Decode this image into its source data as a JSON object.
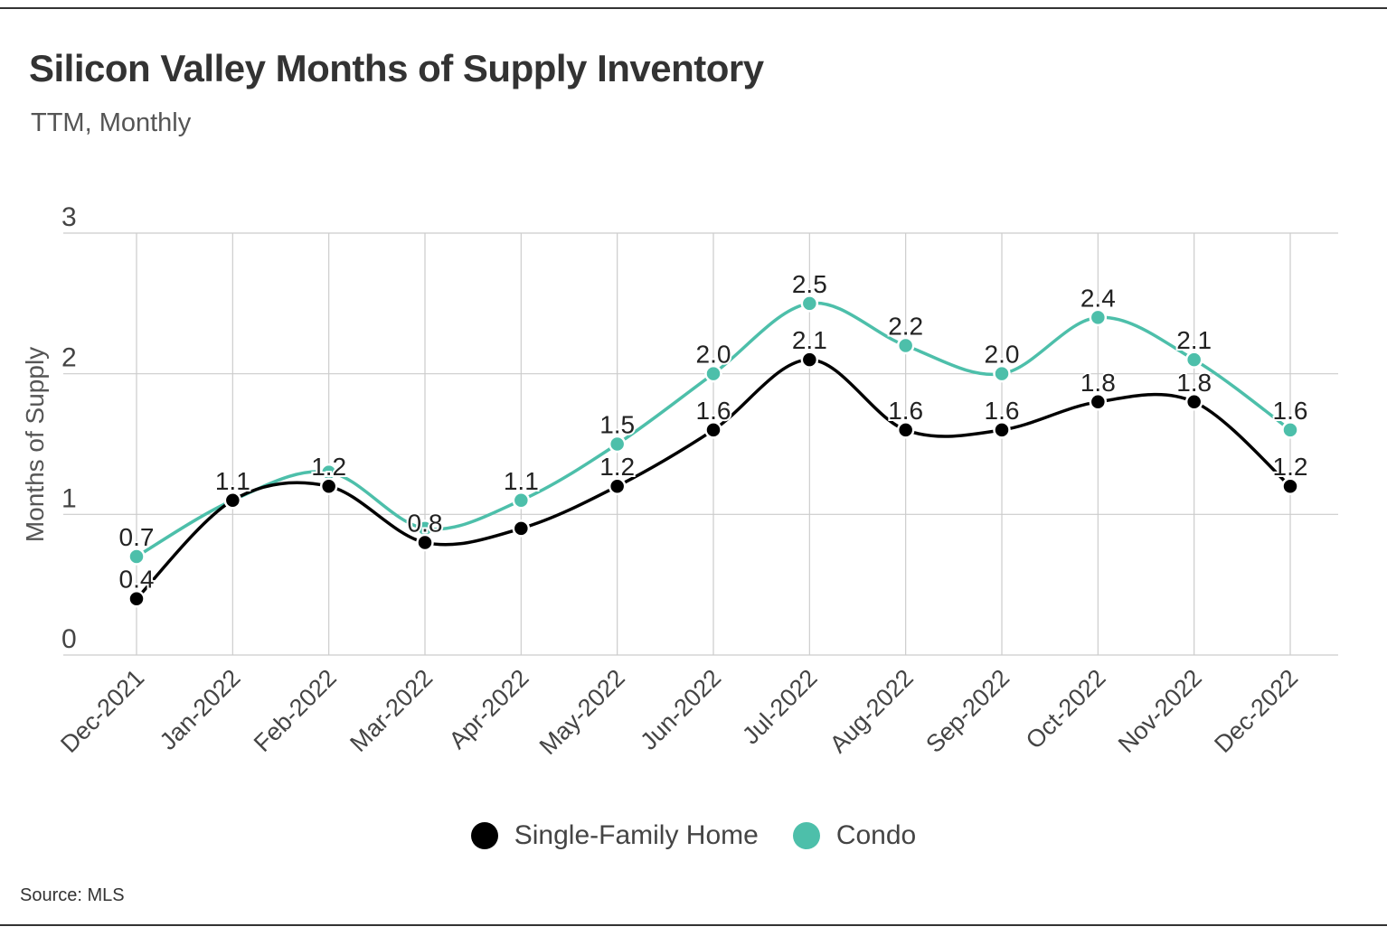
{
  "header": {
    "title": "Silicon Valley Months of Supply Inventory",
    "subtitle": "TTM, Monthly"
  },
  "footer": {
    "source": "Source:  MLS"
  },
  "colors": {
    "single_family": "#000000",
    "condo": "#4dbfaa",
    "grid": "#cccccc",
    "text": "#333333"
  },
  "chart_data": {
    "type": "line",
    "title": "Silicon Valley Months of Supply Inventory",
    "subtitle": "TTM, Monthly",
    "xlabel": "",
    "ylabel": "Months of Supply",
    "ylim": [
      0,
      3
    ],
    "yticks": [
      0,
      1,
      2,
      3
    ],
    "grid": true,
    "legend_position": "bottom-center",
    "categories": [
      "Dec-2021",
      "Jan-2022",
      "Feb-2022",
      "Mar-2022",
      "Apr-2022",
      "May-2022",
      "Jun-2022",
      "Jul-2022",
      "Aug-2022",
      "Sep-2022",
      "Oct-2022",
      "Nov-2022",
      "Dec-2022"
    ],
    "series": [
      {
        "name": "Single-Family Home",
        "values": [
          0.4,
          1.1,
          1.2,
          0.8,
          0.9,
          1.2,
          1.6,
          2.1,
          1.6,
          1.6,
          1.8,
          1.8,
          1.2
        ],
        "labels": [
          "0.4",
          "1.1",
          "1.2",
          "0.8",
          "",
          "1.2",
          "1.6",
          "2.1",
          "1.6",
          "1.6",
          "1.8",
          "1.8",
          "1.2"
        ]
      },
      {
        "name": "Condo",
        "values": [
          0.7,
          1.1,
          1.3,
          0.9,
          1.1,
          1.5,
          2.0,
          2.5,
          2.2,
          2.0,
          2.4,
          2.1,
          1.6
        ],
        "labels": [
          "0.7",
          "",
          "",
          "",
          "1.1",
          "1.5",
          "2.0",
          "2.5",
          "2.2",
          "2.0",
          "2.4",
          "2.1",
          "1.6"
        ]
      }
    ]
  }
}
